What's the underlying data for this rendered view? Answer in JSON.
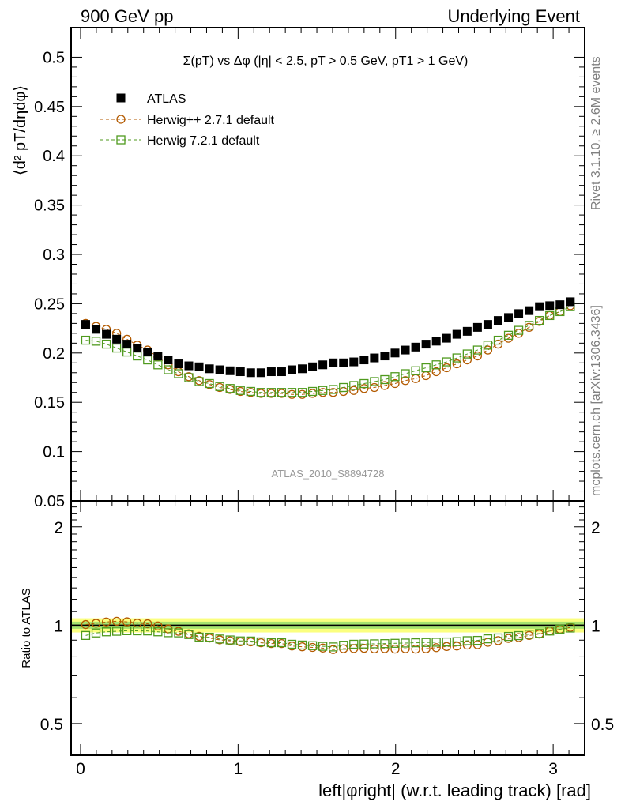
{
  "header": {
    "left": "900 GeV pp",
    "right": "Underlying Event"
  },
  "side_labels": {
    "rivet": "Rivet 3.1.10, ≥ 2.6M events",
    "mcplots": "mcplots.cern.ch [arXiv:1306.3436]"
  },
  "chart_data": [
    {
      "type": "scatter",
      "panel": "main",
      "title": "Σ(pT) vs Δφ (|η| < 2.5, pT > 0.5 GeV, pT1 > 1 GeV)",
      "ylabel": "⟨d² pT/dηdφ⟩",
      "xlabel": "",
      "watermark": "ATLAS_2010_S8894728",
      "xlim": [
        -0.06,
        3.2
      ],
      "ylim": [
        0.05,
        0.53
      ],
      "yticks": [
        "0.05",
        "0.1",
        "0.15",
        "0.2",
        "0.25",
        "0.3",
        "0.35",
        "0.4",
        "0.45",
        "0.5"
      ],
      "grid": false,
      "legend_position": "top-left",
      "x": [
        0.0327,
        0.0982,
        0.1636,
        0.2291,
        0.2945,
        0.36,
        0.4254,
        0.4909,
        0.5563,
        0.6218,
        0.6872,
        0.7527,
        0.8181,
        0.8836,
        0.949,
        1.0145,
        1.0799,
        1.1454,
        1.2108,
        1.2763,
        1.3417,
        1.4072,
        1.4726,
        1.5381,
        1.6035,
        1.669,
        1.7344,
        1.7999,
        1.8653,
        1.9308,
        1.9962,
        2.0617,
        2.1271,
        2.1926,
        2.258,
        2.3235,
        2.3889,
        2.4544,
        2.5198,
        2.5853,
        2.6507,
        2.7162,
        2.7816,
        2.8471,
        2.9125,
        2.978,
        3.0434,
        3.1089
      ],
      "series": [
        {
          "name": "ATLAS",
          "color": "#000000",
          "marker": "filled-square",
          "values": [
            0.229,
            0.224,
            0.219,
            0.214,
            0.209,
            0.205,
            0.201,
            0.197,
            0.193,
            0.189,
            0.187,
            0.186,
            0.184,
            0.183,
            0.182,
            0.181,
            0.18,
            0.18,
            0.181,
            0.181,
            0.183,
            0.184,
            0.186,
            0.188,
            0.19,
            0.19,
            0.191,
            0.193,
            0.195,
            0.197,
            0.2,
            0.203,
            0.206,
            0.209,
            0.212,
            0.215,
            0.219,
            0.222,
            0.226,
            0.229,
            0.233,
            0.236,
            0.24,
            0.243,
            0.247,
            0.248,
            0.249,
            0.252
          ]
        },
        {
          "name": "Herwig++ 2.7.1 default",
          "color": "#b35a00",
          "marker": "open-circle",
          "values": [
            0.23,
            0.227,
            0.224,
            0.22,
            0.214,
            0.208,
            0.203,
            0.196,
            0.188,
            0.181,
            0.176,
            0.172,
            0.168,
            0.165,
            0.163,
            0.161,
            0.16,
            0.159,
            0.159,
            0.159,
            0.158,
            0.158,
            0.159,
            0.16,
            0.16,
            0.161,
            0.162,
            0.164,
            0.165,
            0.167,
            0.169,
            0.172,
            0.174,
            0.177,
            0.181,
            0.185,
            0.189,
            0.193,
            0.197,
            0.203,
            0.209,
            0.215,
            0.22,
            0.226,
            0.232,
            0.238,
            0.242,
            0.248
          ]
        },
        {
          "name": "Herwig 7.2.1 default",
          "color": "#4f9a1e",
          "marker": "open-square",
          "values": [
            0.213,
            0.212,
            0.209,
            0.205,
            0.201,
            0.197,
            0.193,
            0.188,
            0.183,
            0.179,
            0.175,
            0.171,
            0.169,
            0.166,
            0.164,
            0.162,
            0.161,
            0.16,
            0.16,
            0.16,
            0.16,
            0.16,
            0.161,
            0.162,
            0.163,
            0.165,
            0.167,
            0.169,
            0.171,
            0.173,
            0.176,
            0.179,
            0.182,
            0.185,
            0.188,
            0.191,
            0.195,
            0.199,
            0.203,
            0.208,
            0.213,
            0.218,
            0.223,
            0.228,
            0.233,
            0.238,
            0.242,
            0.247
          ]
        }
      ]
    },
    {
      "type": "scatter",
      "panel": "ratio",
      "ylabel": "Ratio to ATLAS",
      "xlabel": "left|φright| (w.r.t. leading track) [rad]",
      "xlim": [
        -0.06,
        3.2
      ],
      "xticks": [
        "0",
        "1",
        "2",
        "3"
      ],
      "ylim": [
        0.4,
        2.4
      ],
      "yscale": "log",
      "yticks": [
        "0.5",
        "1",
        "2"
      ],
      "grid": false,
      "band": {
        "lower": 0.95,
        "upper": 1.05,
        "inner_lower": 0.975,
        "inner_upper": 1.025,
        "outer_color": "#fbff7f",
        "inner_color": "#a6e36f"
      }
    }
  ]
}
